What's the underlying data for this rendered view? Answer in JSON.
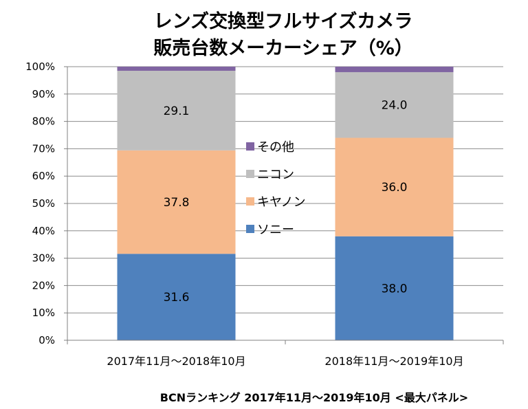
{
  "chart_data": {
    "type": "stacked-bar-100",
    "title_lines": [
      "レンズ交換型フルサイズカメラ",
      "販売台数メーカーシェア（%）"
    ],
    "categories": [
      "2017年11月～2018年10月",
      "2018年11月～2019年10月"
    ],
    "series": [
      {
        "name": "ソニー",
        "color": "#4F81BD",
        "values": [
          31.6,
          38.0
        ],
        "labels": [
          "31.6",
          "38.0"
        ]
      },
      {
        "name": "キヤノン",
        "color": "#F6B98C",
        "values": [
          37.8,
          36.0
        ],
        "labels": [
          "37.8",
          "36.0"
        ]
      },
      {
        "name": "ニコン",
        "color": "#BFBFBF",
        "values": [
          29.1,
          24.0
        ],
        "labels": [
          "29.1",
          "24.0"
        ]
      },
      {
        "name": "その他",
        "color": "#8064A2",
        "values": [
          1.5,
          2.0
        ],
        "labels": [
          "",
          ""
        ]
      }
    ],
    "y_ticks": [
      "0%",
      "10%",
      "20%",
      "30%",
      "40%",
      "50%",
      "60%",
      "70%",
      "80%",
      "90%",
      "100%"
    ],
    "ylim": [
      0,
      100
    ],
    "grid": true,
    "legend_order": [
      "その他",
      "ニコン",
      "キヤノン",
      "ソニー"
    ],
    "legend_position": "center"
  },
  "source": "BCNランキング 2017年11月～2019年10月 <最大パネル>"
}
